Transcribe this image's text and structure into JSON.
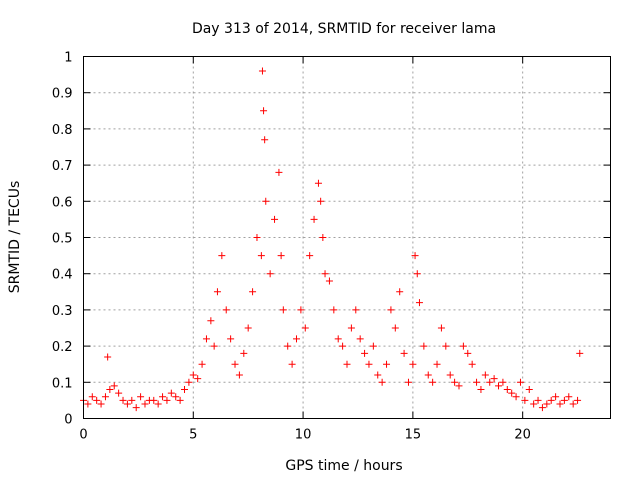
{
  "chart_data": {
    "type": "scatter",
    "title": "Day 313 of 2014, SRMTID for receiver lama",
    "xlabel": "GPS time / hours",
    "ylabel": "SRMTID / TECUs",
    "xlim": [
      0,
      24
    ],
    "ylim": [
      0,
      1
    ],
    "xticks": [
      0,
      5,
      10,
      15,
      20
    ],
    "xtick_labels": [
      "0",
      "5",
      "10",
      "15",
      "20"
    ],
    "yticks": [
      0,
      0.1,
      0.2,
      0.3,
      0.4,
      0.5,
      0.6,
      0.7,
      0.8,
      0.9,
      1
    ],
    "ytick_labels": [
      "0",
      "0.1",
      "0.2",
      "0.3",
      "0.4",
      "0.5",
      "0.6",
      "0.7",
      "0.8",
      "0.9",
      "1"
    ],
    "grid": true,
    "marker": "plus",
    "color": "#ff0000",
    "series": [
      {
        "name": "SRMTID",
        "x": [
          0.0,
          0.2,
          0.4,
          0.6,
          0.8,
          1.0,
          1.1,
          1.2,
          1.4,
          1.6,
          1.8,
          2.0,
          2.2,
          2.4,
          2.6,
          2.8,
          3.0,
          3.2,
          3.4,
          3.6,
          3.8,
          4.0,
          4.2,
          4.4,
          4.6,
          4.8,
          5.0,
          5.2,
          5.4,
          5.6,
          5.8,
          5.95,
          6.1,
          6.3,
          6.5,
          6.7,
          6.9,
          7.1,
          7.3,
          7.5,
          7.7,
          7.9,
          8.1,
          8.15,
          8.2,
          8.25,
          8.3,
          8.5,
          8.7,
          8.9,
          9.0,
          9.1,
          9.3,
          9.5,
          9.7,
          9.9,
          10.1,
          10.3,
          10.5,
          10.7,
          10.8,
          10.9,
          11.0,
          11.2,
          11.4,
          11.6,
          11.8,
          12.0,
          12.2,
          12.4,
          12.6,
          12.8,
          13.0,
          13.2,
          13.4,
          13.6,
          13.8,
          14.0,
          14.2,
          14.4,
          14.6,
          14.8,
          15.0,
          15.1,
          15.2,
          15.3,
          15.5,
          15.7,
          15.9,
          16.1,
          16.3,
          16.5,
          16.7,
          16.9,
          17.1,
          17.3,
          17.5,
          17.7,
          17.9,
          18.1,
          18.3,
          18.5,
          18.7,
          18.9,
          19.1,
          19.3,
          19.5,
          19.7,
          19.9,
          20.1,
          20.3,
          20.5,
          20.7,
          20.9,
          21.1,
          21.3,
          21.5,
          21.7,
          21.9,
          22.1,
          22.3,
          22.5,
          22.6
        ],
        "y": [
          0.05,
          0.04,
          0.06,
          0.05,
          0.04,
          0.06,
          0.17,
          0.08,
          0.09,
          0.07,
          0.05,
          0.04,
          0.05,
          0.03,
          0.06,
          0.04,
          0.05,
          0.05,
          0.04,
          0.06,
          0.05,
          0.07,
          0.06,
          0.05,
          0.08,
          0.1,
          0.12,
          0.11,
          0.15,
          0.22,
          0.27,
          0.2,
          0.35,
          0.45,
          0.3,
          0.22,
          0.15,
          0.12,
          0.18,
          0.25,
          0.35,
          0.5,
          0.45,
          0.96,
          0.85,
          0.77,
          0.6,
          0.4,
          0.55,
          0.68,
          0.45,
          0.3,
          0.2,
          0.15,
          0.22,
          0.3,
          0.25,
          0.45,
          0.55,
          0.65,
          0.6,
          0.5,
          0.4,
          0.38,
          0.3,
          0.22,
          0.2,
          0.15,
          0.25,
          0.3,
          0.22,
          0.18,
          0.15,
          0.2,
          0.12,
          0.1,
          0.15,
          0.3,
          0.25,
          0.35,
          0.18,
          0.1,
          0.15,
          0.45,
          0.4,
          0.32,
          0.2,
          0.12,
          0.1,
          0.15,
          0.25,
          0.2,
          0.12,
          0.1,
          0.09,
          0.2,
          0.18,
          0.15,
          0.1,
          0.08,
          0.12,
          0.1,
          0.11,
          0.09,
          0.1,
          0.08,
          0.07,
          0.06,
          0.1,
          0.05,
          0.08,
          0.04,
          0.05,
          0.03,
          0.04,
          0.05,
          0.06,
          0.04,
          0.05,
          0.06,
          0.04,
          0.05,
          0.18
        ]
      }
    ]
  }
}
